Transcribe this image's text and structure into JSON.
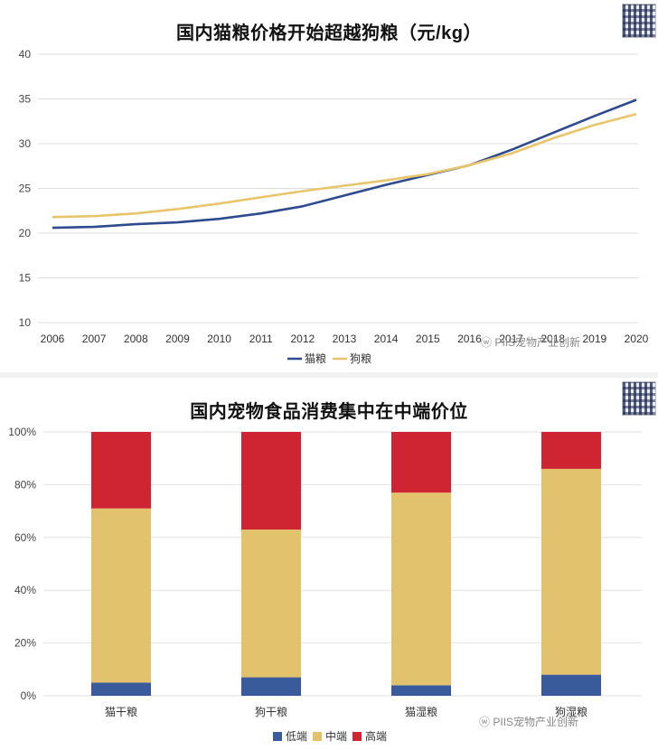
{
  "panel1": {
    "watermark_source": "PIIS宠物产业创新",
    "chart_data": {
      "type": "line",
      "title": "国内猫粮价格开始超越狗粮（元/kg）",
      "x": [
        "2006",
        "2007",
        "2008",
        "2009",
        "2010",
        "2011",
        "2012",
        "2013",
        "2014",
        "2015",
        "2016",
        "2017",
        "2018",
        "2019",
        "2020"
      ],
      "ylim": [
        10,
        40
      ],
      "yticks": [
        10,
        15,
        20,
        25,
        30,
        35,
        40
      ],
      "grid": true,
      "legend_position": "bottom",
      "series": [
        {
          "name": "猫粮",
          "color": "#2f4b8f",
          "values": [
            20.6,
            20.7,
            21.0,
            21.2,
            21.6,
            22.2,
            23.0,
            24.2,
            25.4,
            26.5,
            27.6,
            29.3,
            31.2,
            33.1,
            34.9
          ]
        },
        {
          "name": "狗粮",
          "color": "#e8c46a",
          "values": [
            21.8,
            21.9,
            22.2,
            22.7,
            23.3,
            24.0,
            24.7,
            25.3,
            25.9,
            26.6,
            27.6,
            28.9,
            30.6,
            32.1,
            33.3
          ]
        }
      ]
    }
  },
  "panel2": {
    "watermark_source": "PIIS宠物产业创新",
    "chart_data": {
      "type": "bar",
      "stacked": true,
      "title": "国内宠物食品消费集中在中端价位",
      "categories": [
        "猫干粮",
        "狗干粮",
        "猫湿粮",
        "狗湿粮"
      ],
      "ylim": [
        0,
        100
      ],
      "yticks": [
        "0%",
        "20%",
        "40%",
        "60%",
        "80%",
        "100%"
      ],
      "legend_position": "bottom",
      "series": [
        {
          "name": "低端",
          "color": "#3a5b9b",
          "values": [
            5,
            7,
            4,
            8
          ]
        },
        {
          "name": "中端",
          "color": "#e3c26e",
          "values": [
            66,
            56,
            73,
            78
          ]
        },
        {
          "name": "高端",
          "color": "#cf2432",
          "values": [
            29,
            37,
            23,
            14
          ]
        }
      ]
    }
  }
}
